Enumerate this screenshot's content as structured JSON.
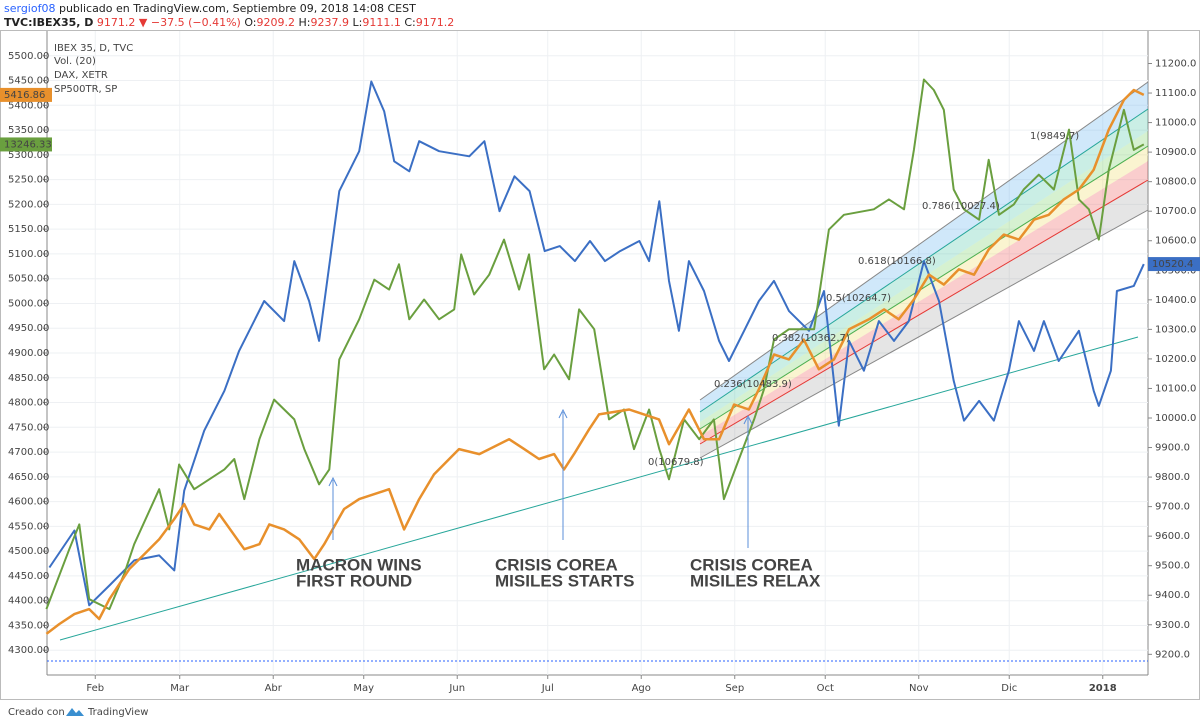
{
  "header": {
    "line1": [
      "sergiof08",
      "publicado en TradingView.com, Septiembre 09, 2018 14:08 CEST"
    ],
    "line2": [
      "TVC:IBEX35, D",
      "9171.2",
      "▼",
      "−37.5 (−0.41%)",
      "O:",
      "9209.2",
      "H:",
      "9237.9",
      "L:",
      "9111.1",
      "C:",
      "9171.2"
    ]
  },
  "footer": {
    "created": "Creado con",
    "brand": "TradingView"
  },
  "chart_data": {
    "type": "line",
    "volume_label": "Vol. (20)",
    "xlim": [
      15,
      380
    ],
    "xticks": [
      {
        "value": 31,
        "label": "Feb"
      },
      {
        "value": 59,
        "label": "Mar"
      },
      {
        "value": 90,
        "label": "Abr"
      },
      {
        "value": 120,
        "label": "May"
      },
      {
        "value": 151,
        "label": "Jun"
      },
      {
        "value": 181,
        "label": "Jul"
      },
      {
        "value": 212,
        "label": "Ago"
      },
      {
        "value": 243,
        "label": "Sep"
      },
      {
        "value": 273,
        "label": "Oct"
      },
      {
        "value": 304,
        "label": "Nov"
      },
      {
        "value": 334,
        "label": "Dic"
      },
      {
        "value": 365,
        "label": "2018"
      }
    ],
    "ylim": [
      4250,
      5550
    ],
    "yticks": [
      {
        "value": 4300,
        "label": "4300.00"
      },
      {
        "value": 4350,
        "label": "4350.00"
      },
      {
        "value": 4400,
        "label": "4400.00"
      },
      {
        "value": 4450,
        "label": "4450.00"
      },
      {
        "value": 4500,
        "label": "4500.00"
      },
      {
        "value": 4550,
        "label": "4550.00"
      },
      {
        "value": 4600,
        "label": "4600.00"
      },
      {
        "value": 4650,
        "label": "4650.00"
      },
      {
        "value": 4700,
        "label": "4700.00"
      },
      {
        "value": 4750,
        "label": "4750.00"
      },
      {
        "value": 4800,
        "label": "4800.00"
      },
      {
        "value": 4850,
        "label": "4850.00"
      },
      {
        "value": 4900,
        "label": "4900.00"
      },
      {
        "value": 4950,
        "label": "4950.00"
      },
      {
        "value": 5000,
        "label": "5000.00"
      },
      {
        "value": 5050,
        "label": "5050.00"
      },
      {
        "value": 5100,
        "label": "5100.00"
      },
      {
        "value": 5150,
        "label": "5150.00"
      },
      {
        "value": 5200,
        "label": "5200.00"
      },
      {
        "value": 5250,
        "label": "5250.00"
      },
      {
        "value": 5300,
        "label": "5300.00"
      },
      {
        "value": 5350,
        "label": "5350.00"
      },
      {
        "value": 5400,
        "label": "5400.00"
      },
      {
        "value": 5450,
        "label": "5450.00"
      },
      {
        "value": 5500,
        "label": "5500.00"
      }
    ],
    "y2lim": [
      9130,
      11310
    ],
    "y2ticks": [
      {
        "value": 9200,
        "label": "9200.0"
      },
      {
        "value": 9300,
        "label": "9300.0"
      },
      {
        "value": 9400,
        "label": "9400.0"
      },
      {
        "value": 9500,
        "label": "9500.0"
      },
      {
        "value": 9600,
        "label": "9600.0"
      },
      {
        "value": 9700,
        "label": "9700.0"
      },
      {
        "value": 9800,
        "label": "9800.0"
      },
      {
        "value": 9900,
        "label": "9900.0"
      },
      {
        "value": 10000,
        "label": "10000.0"
      },
      {
        "value": 10100,
        "label": "10100.0"
      },
      {
        "value": 10200,
        "label": "10200.0"
      },
      {
        "value": 10300,
        "label": "10300.0"
      },
      {
        "value": 10400,
        "label": "10400.0"
      },
      {
        "value": 10500,
        "label": "10500.0"
      },
      {
        "value": 10600,
        "label": "10600.0"
      },
      {
        "value": 10700,
        "label": "10700.0"
      },
      {
        "value": 10800,
        "label": "10800.0"
      },
      {
        "value": 10900,
        "label": "10900.0"
      },
      {
        "value": 11000,
        "label": "11000.0"
      },
      {
        "value": 11100,
        "label": "11100.0"
      },
      {
        "value": 11200,
        "label": "11200.0"
      }
    ],
    "grid": true,
    "series": [
      {
        "name": "IBEX 35, D, TVC",
        "color": "#3b6fc4",
        "axis": "y2",
        "last_label": "10520.4",
        "x": [
          15.8,
          24.1,
          29.0,
          35.7,
          43.9,
          52.2,
          57.2,
          60.5,
          67.1,
          73.8,
          78.7,
          87.0,
          93.6,
          97.0,
          101.9,
          105.2,
          111.9,
          118.5,
          122.5,
          126.8,
          130.1,
          135.1,
          138.4,
          145.0,
          155.0,
          160.0,
          165.0,
          170.0,
          175.0,
          180.0,
          185.0,
          190.0,
          195.0,
          200.0,
          205.0,
          211.4,
          214.6,
          218.0,
          221.2,
          224.5,
          227.8,
          232.8,
          237.8,
          241.1,
          246.1,
          251.0,
          256.0,
          261.0,
          267.6,
          272.6,
          277.5,
          280.9,
          285.8,
          290.8,
          295.8,
          300.7,
          305.7,
          310.7,
          315.6,
          319.0,
          324.0,
          328.9,
          333.9,
          337.2,
          342.2,
          345.5,
          350.4,
          357.1,
          362.0,
          363.7,
          367.7,
          369.7,
          375.3,
          378.6
        ],
        "values": [
          9494,
          9619,
          9366,
          9433,
          9518,
          9535,
          9484,
          9754,
          9957,
          10092,
          10227,
          10396,
          10328,
          10531,
          10396,
          10261,
          10768,
          10903,
          11139,
          11038,
          10869,
          10835,
          10937,
          10903,
          10886,
          10937,
          10700,
          10818,
          10768,
          10565,
          10582,
          10531,
          10599,
          10531,
          10565,
          10599,
          10531,
          10734,
          10464,
          10295,
          10531,
          10430,
          10261,
          10193,
          10295,
          10396,
          10464,
          10362,
          10295,
          10430,
          9974,
          10261,
          10160,
          10328,
          10261,
          10328,
          10531,
          10396,
          10126,
          9991,
          10058,
          9991,
          10160,
          10328,
          10227,
          10328,
          10193,
          10295,
          10092,
          10041,
          10160,
          10430,
          10447,
          10521
        ]
      },
      {
        "name": "DAX, XETR",
        "color": "#6a9f3f",
        "axis": "y",
        "last_label": "13246.33",
        "x": [
          14.8,
          22.4,
          25.7,
          29.0,
          35.7,
          40.6,
          43.9,
          52.2,
          55.5,
          58.8,
          63.8,
          73.8,
          77.1,
          80.4,
          85.4,
          90.3,
          97.0,
          100.3,
          105.2,
          108.6,
          111.9,
          118.5,
          123.5,
          128.4,
          131.7,
          135.1,
          140.0,
          145.0,
          150.0,
          152.3,
          156.6,
          161.6,
          166.5,
          171.5,
          174.8,
          179.8,
          183.1,
          188.1,
          191.4,
          196.4,
          201.3,
          206.3,
          209.6,
          214.6,
          218.0,
          221.2,
          226.2,
          231.2,
          236.1,
          239.4,
          244.4,
          249.4,
          252.7,
          256.0,
          261.0,
          269.3,
          274.2,
          279.2,
          289.1,
          294.1,
          299.1,
          302.4,
          305.7,
          309.0,
          312.3,
          315.6,
          319.0,
          324.0,
          327.2,
          330.6,
          335.5,
          338.8,
          343.8,
          348.8,
          353.8,
          357.1,
          360.4,
          363.7,
          367.0,
          372.0,
          375.3,
          378.6
        ],
        "values": [
          4383,
          4504,
          4554,
          4403,
          4383,
          4454,
          4514,
          4625,
          4544,
          4675,
          4625,
          4665,
          4686,
          4605,
          4726,
          4806,
          4766,
          4706,
          4635,
          4665,
          4887,
          4968,
          5048,
          5028,
          5079,
          4968,
          5008,
          4968,
          4988,
          5099,
          5018,
          5058,
          5129,
          5028,
          5099,
          4867,
          4897,
          4847,
          4988,
          4948,
          4766,
          4786,
          4706,
          4786,
          4706,
          4645,
          4766,
          4726,
          4766,
          4605,
          4686,
          4766,
          4827,
          4927,
          4948,
          4948,
          5149,
          5179,
          5190,
          5210,
          5190,
          5310,
          5452,
          5431,
          5391,
          5230,
          5190,
          5169,
          5290,
          5179,
          5200,
          5230,
          5260,
          5230,
          5351,
          5210,
          5190,
          5129,
          5270,
          5391,
          5310,
          5321
        ]
      },
      {
        "name": "SP500TR, SP",
        "color": "#e8902c",
        "axis": "y",
        "last_label": "5416.86",
        "x": [
          14.8,
          19.1,
          24.1,
          29.0,
          32.3,
          35.7,
          42.3,
          47.3,
          52.2,
          57.2,
          60.5,
          63.8,
          68.8,
          72.1,
          80.4,
          85.4,
          88.7,
          93.6,
          98.6,
          103.6,
          106.9,
          113.5,
          118.5,
          128.4,
          133.4,
          138.4,
          143.3,
          151.6,
          158.3,
          168.2,
          173.2,
          178.1,
          183.1,
          186.4,
          189.7,
          194.7,
          198.0,
          208.0,
          217.9,
          221.2,
          227.8,
          232.8,
          237.8,
          242.8,
          247.7,
          251.0,
          256.0,
          261.0,
          265.9,
          270.9,
          275.9,
          280.9,
          287.5,
          292.5,
          297.4,
          302.4,
          307.4,
          312.3,
          317.3,
          322.3,
          327.2,
          332.2,
          337.2,
          342.2,
          347.1,
          352.1,
          357.1,
          362.0,
          367.0,
          372.0,
          375.3,
          378.6
        ],
        "values": [
          4333,
          4353,
          4373,
          4383,
          4363,
          4403,
          4464,
          4494,
          4524,
          4565,
          4595,
          4554,
          4544,
          4575,
          4504,
          4514,
          4554,
          4544,
          4524,
          4484,
          4514,
          4585,
          4605,
          4625,
          4544,
          4605,
          4655,
          4706,
          4696,
          4726,
          4706,
          4686,
          4696,
          4665,
          4696,
          4746,
          4776,
          4786,
          4766,
          4716,
          4786,
          4726,
          4726,
          4796,
          4786,
          4827,
          4897,
          4887,
          4927,
          4867,
          4887,
          4948,
          4968,
          4988,
          4968,
          5008,
          5058,
          5038,
          5069,
          5058,
          5109,
          5139,
          5129,
          5169,
          5179,
          5210,
          5230,
          5270,
          5351,
          5411,
          5431,
          5421
        ]
      }
    ],
    "fib_labels": [
      {
        "text": "1(9849.7)",
        "color": "#888888"
      },
      {
        "text": "0.786(10027.4)",
        "color": "#3a8fd0"
      },
      {
        "text": "0.618(10166.8)",
        "color": "#26a69a"
      },
      {
        "text": "0.5(10264.7)",
        "color": "#4caf50"
      },
      {
        "text": "0.382(10362.7)",
        "color": "#9ccc3c"
      },
      {
        "text": "0.236(10483.9)",
        "color": "#e53935"
      },
      {
        "text": "0(10679.8)",
        "color": "#888888"
      }
    ],
    "annotations": [
      {
        "lines": [
          "MACRON WINS",
          "FIRST ROUND"
        ],
        "color": "#3d7a1e"
      },
      {
        "lines": [
          "CRISIS COREA",
          "MISILES STARTS"
        ],
        "color": "#e02b2b"
      },
      {
        "lines": [
          "CRISIS COREA",
          "MISILES RELAX"
        ],
        "color": "#6aa84f"
      }
    ]
  }
}
